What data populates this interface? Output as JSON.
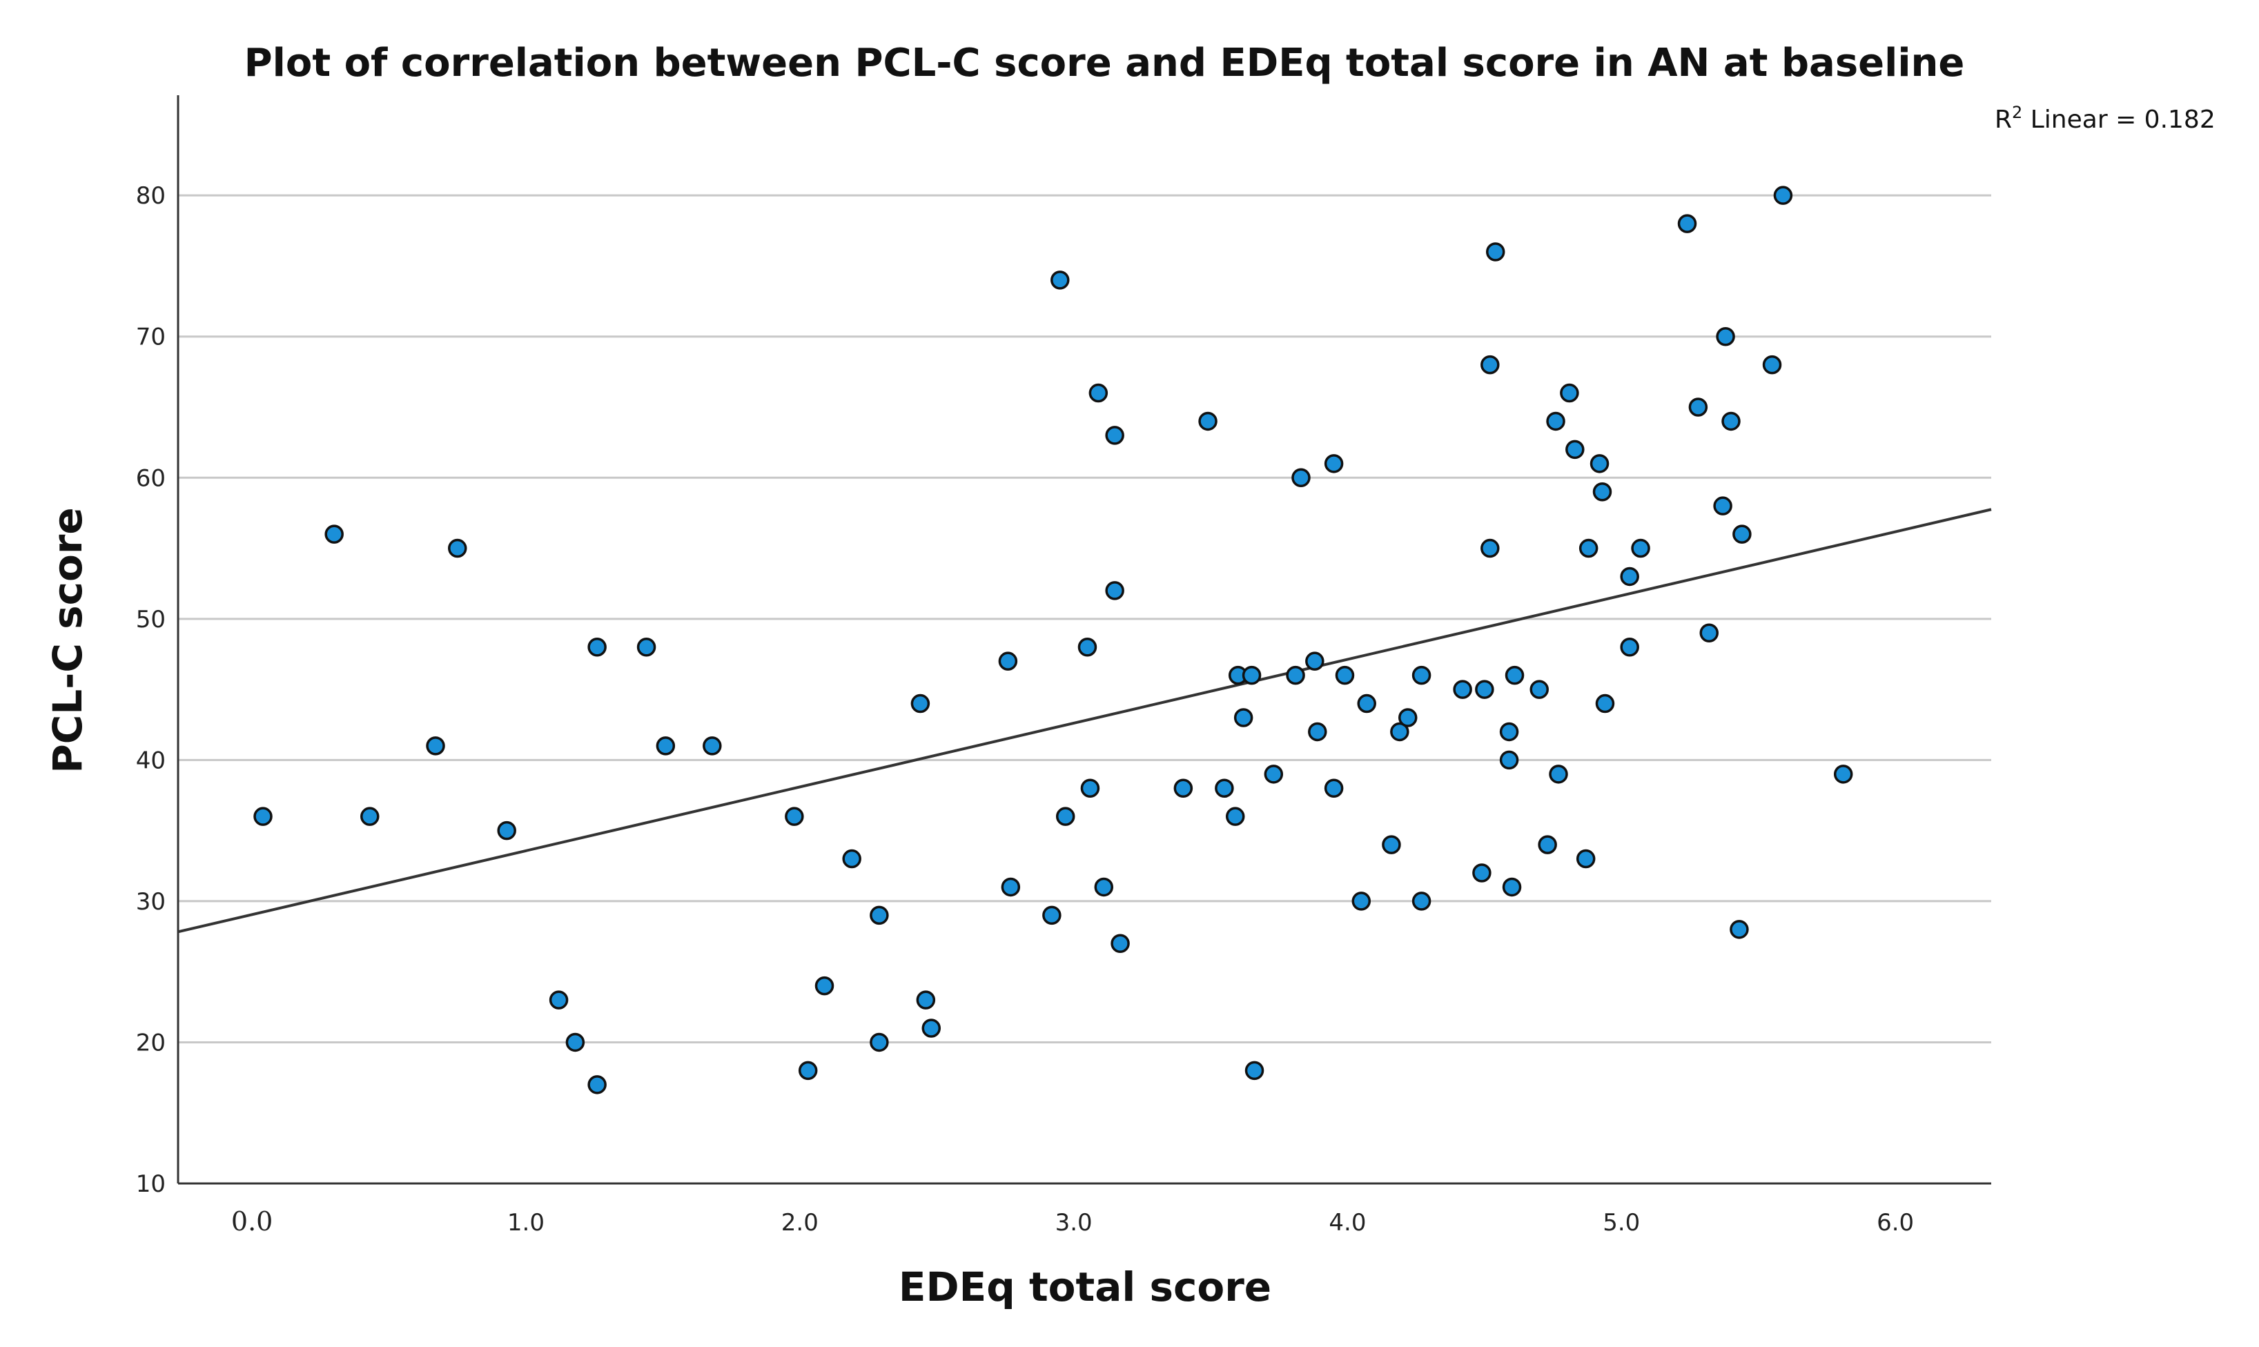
{
  "chart_data": {
    "type": "scatter",
    "title": "Plot of correlation between PCL-C score and EDEq total score in AN at baseline",
    "xlabel": "EDEq total score",
    "ylabel": "PCL-C score",
    "xlim": [
      -0.27,
      6.35
    ],
    "ylim": [
      10,
      87
    ],
    "x_ticks": [
      0.0,
      1.0,
      2.0,
      3.0,
      4.0,
      5.0,
      6.0
    ],
    "x_tick_labels": [
      "0.0",
      "1.0",
      "2.0",
      "3.0",
      "4.0",
      "5.0",
      "6.0"
    ],
    "y_ticks": [
      10,
      20,
      30,
      40,
      50,
      60,
      70,
      80
    ],
    "y_tick_labels": [
      "10",
      "20",
      "30",
      "40",
      "50",
      "60",
      "70",
      "80"
    ],
    "grid": "horizontal",
    "r2_annotation": {
      "prefix": "R",
      "superscript": "2",
      "text": " Linear = 0.182"
    },
    "fit_line": {
      "label": "Linear fit",
      "intercept": 29.05,
      "slope": 4.52
    },
    "marker_fill": "#1a8fd8",
    "marker_edge": "#111111",
    "series": [
      {
        "name": "AN at baseline",
        "points": [
          [
            0.04,
            36
          ],
          [
            0.3,
            56
          ],
          [
            0.43,
            36
          ],
          [
            0.67,
            41
          ],
          [
            0.75,
            55
          ],
          [
            0.93,
            35
          ],
          [
            1.12,
            23
          ],
          [
            1.18,
            20
          ],
          [
            1.26,
            17
          ],
          [
            1.26,
            48
          ],
          [
            1.44,
            48
          ],
          [
            1.51,
            41
          ],
          [
            1.68,
            41
          ],
          [
            1.98,
            36
          ],
          [
            2.03,
            18
          ],
          [
            2.09,
            24
          ],
          [
            2.19,
            33
          ],
          [
            2.29,
            29
          ],
          [
            2.29,
            20
          ],
          [
            2.44,
            44
          ],
          [
            2.46,
            23
          ],
          [
            2.48,
            21
          ],
          [
            2.76,
            47
          ],
          [
            2.77,
            31
          ],
          [
            2.92,
            29
          ],
          [
            2.95,
            74
          ],
          [
            2.97,
            36
          ],
          [
            3.05,
            48
          ],
          [
            3.06,
            38
          ],
          [
            3.09,
            66
          ],
          [
            3.11,
            31
          ],
          [
            3.15,
            63
          ],
          [
            3.15,
            52
          ],
          [
            3.17,
            27
          ],
          [
            3.4,
            38
          ],
          [
            3.49,
            64
          ],
          [
            3.55,
            38
          ],
          [
            3.59,
            36
          ],
          [
            3.6,
            46
          ],
          [
            3.62,
            43
          ],
          [
            3.65,
            46
          ],
          [
            3.66,
            18
          ],
          [
            3.73,
            39
          ],
          [
            3.81,
            46
          ],
          [
            3.83,
            60
          ],
          [
            3.88,
            47
          ],
          [
            3.89,
            42
          ],
          [
            3.95,
            38
          ],
          [
            3.95,
            61
          ],
          [
            3.99,
            46
          ],
          [
            4.05,
            30
          ],
          [
            4.07,
            44
          ],
          [
            4.16,
            34
          ],
          [
            4.19,
            42
          ],
          [
            4.22,
            43
          ],
          [
            4.27,
            30
          ],
          [
            4.27,
            46
          ],
          [
            4.42,
            45
          ],
          [
            4.49,
            32
          ],
          [
            4.5,
            45
          ],
          [
            4.52,
            68
          ],
          [
            4.52,
            55
          ],
          [
            4.54,
            76
          ],
          [
            4.59,
            40
          ],
          [
            4.59,
            42
          ],
          [
            4.6,
            31
          ],
          [
            4.61,
            46
          ],
          [
            4.7,
            45
          ],
          [
            4.73,
            34
          ],
          [
            4.76,
            64
          ],
          [
            4.77,
            39
          ],
          [
            4.81,
            66
          ],
          [
            4.83,
            62
          ],
          [
            4.87,
            33
          ],
          [
            4.88,
            55
          ],
          [
            4.92,
            61
          ],
          [
            4.93,
            59
          ],
          [
            4.94,
            44
          ],
          [
            5.03,
            53
          ],
          [
            5.03,
            48
          ],
          [
            5.07,
            55
          ],
          [
            5.24,
            78
          ],
          [
            5.28,
            65
          ],
          [
            5.32,
            49
          ],
          [
            5.37,
            58
          ],
          [
            5.38,
            70
          ],
          [
            5.4,
            64
          ],
          [
            5.43,
            28
          ],
          [
            5.44,
            56
          ],
          [
            5.55,
            68
          ],
          [
            5.59,
            80
          ],
          [
            5.81,
            39
          ]
        ]
      }
    ]
  }
}
